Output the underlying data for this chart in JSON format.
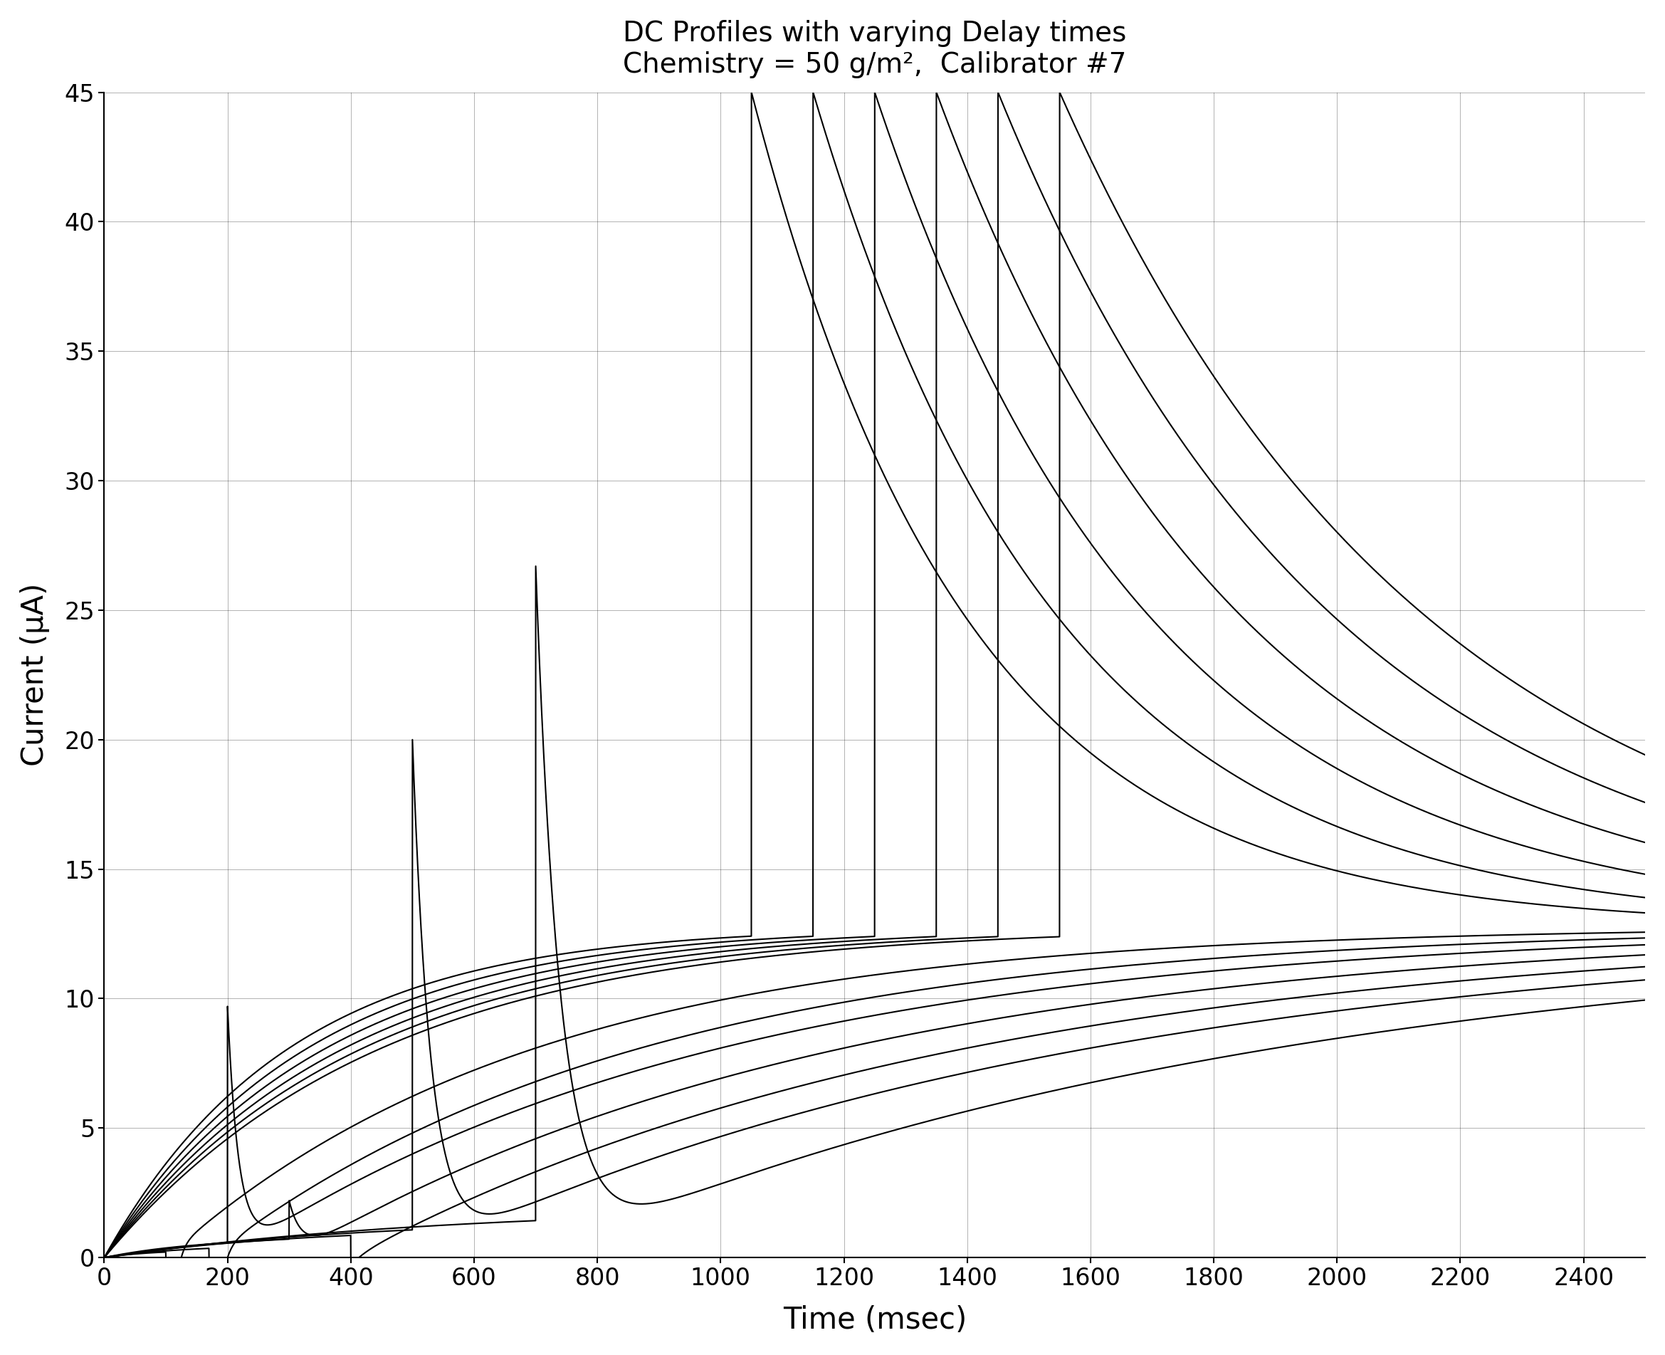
{
  "title_line1": "DC Profiles with varying Delay times",
  "title_line2": "Chemistry = 50 g/m²,  Calibrator #7",
  "xlabel": "Time (msec)",
  "ylabel": "Current (μA)",
  "xlim": [
    0,
    2500
  ],
  "ylim": [
    0,
    45
  ],
  "xticks": [
    0,
    200,
    400,
    600,
    800,
    1000,
    1200,
    1400,
    1600,
    1800,
    2000,
    2200,
    2400
  ],
  "yticks": [
    0,
    5,
    10,
    15,
    20,
    25,
    30,
    35,
    40,
    45
  ],
  "background_color": "#ffffff",
  "line_color": "#000000",
  "steady_state": 12.8
}
